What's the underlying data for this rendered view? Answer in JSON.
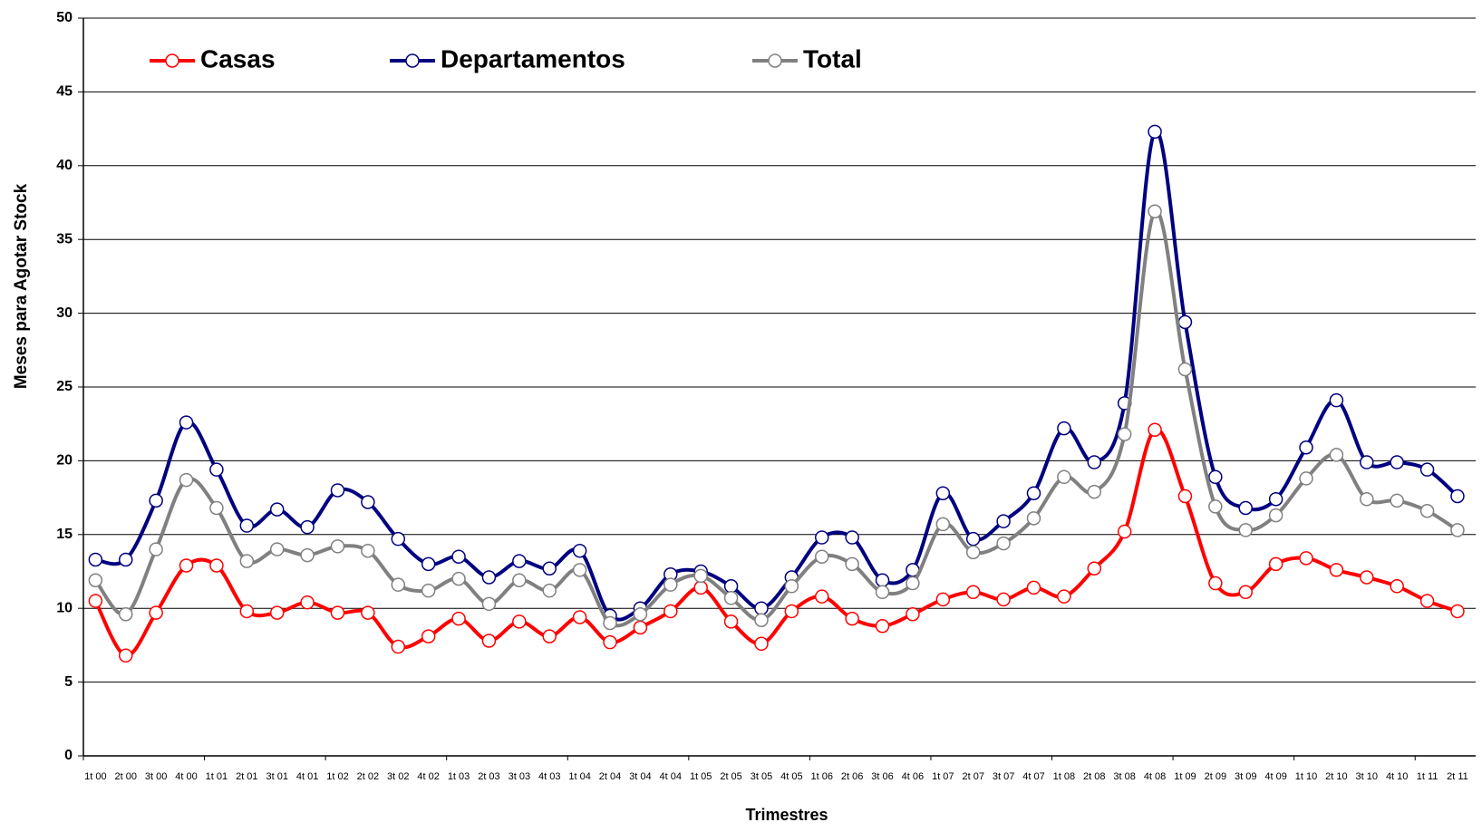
{
  "chart_data": {
    "type": "line",
    "xlabel": "Trimestres",
    "ylabel": "Meses para Agotar Stock",
    "categories": [
      "1t 00",
      "2t 00",
      "3t 00",
      "4t 00",
      "1t 01",
      "2t 01",
      "3t 01",
      "4t 01",
      "1t 02",
      "2t 02",
      "3t 02",
      "4t 02",
      "1t 03",
      "2t 03",
      "3t 03",
      "4t 03",
      "1t 04",
      "2t 04",
      "3t 04",
      "4t 04",
      "1t 05",
      "2t 05",
      "3t 05",
      "4t 05",
      "1t 06",
      "2t 06",
      "3t 06",
      "4t 06",
      "1t 07",
      "2t 07",
      "3t 07",
      "4t 07",
      "1t 08",
      "2t 08",
      "3t 08",
      "4t 08",
      "1t 09",
      "2t 09",
      "3t 09",
      "4t 09",
      "1t 10",
      "2t 10",
      "3t 10",
      "4t 10",
      "1t 11",
      "2t 11"
    ],
    "series": [
      {
        "name": "Casas",
        "color": "#ff0000",
        "values": [
          10.5,
          6.8,
          9.7,
          12.9,
          12.9,
          9.8,
          9.7,
          10.4,
          9.7,
          9.7,
          7.4,
          8.1,
          9.3,
          7.8,
          9.1,
          8.1,
          9.4,
          7.7,
          8.7,
          9.8,
          11.4,
          9.1,
          7.6,
          9.8,
          10.8,
          9.3,
          8.8,
          9.6,
          10.6,
          11.1,
          10.6,
          11.4,
          10.8,
          12.7,
          15.2,
          22.1,
          17.6,
          11.7,
          11.1,
          13.0,
          13.4,
          12.6,
          12.1,
          11.5,
          10.5,
          9.8
        ]
      },
      {
        "name": "Departamentos",
        "color": "#000080",
        "values": [
          13.3,
          13.3,
          17.3,
          22.6,
          19.4,
          15.6,
          16.7,
          15.5,
          18.0,
          17.2,
          14.7,
          13.0,
          13.5,
          12.1,
          13.2,
          12.7,
          13.9,
          9.5,
          10.0,
          12.3,
          12.5,
          11.5,
          10.0,
          12.1,
          14.8,
          14.8,
          11.9,
          12.6,
          17.8,
          14.7,
          15.9,
          17.8,
          22.2,
          19.9,
          23.9,
          42.3,
          29.4,
          18.9,
          16.8,
          17.4,
          20.9,
          24.1,
          19.9,
          19.9,
          19.4,
          17.6
        ]
      },
      {
        "name": "Total",
        "color": "#808080",
        "values": [
          11.9,
          9.6,
          14.0,
          18.7,
          16.8,
          13.2,
          14.0,
          13.6,
          14.2,
          13.9,
          11.6,
          11.2,
          12.0,
          10.3,
          11.9,
          11.2,
          12.6,
          9.0,
          9.6,
          11.6,
          12.2,
          10.7,
          9.2,
          11.5,
          13.5,
          13.0,
          11.1,
          11.7,
          15.7,
          13.8,
          14.4,
          16.1,
          18.9,
          17.9,
          21.8,
          36.9,
          26.2,
          16.9,
          15.3,
          16.3,
          18.8,
          20.4,
          17.4,
          17.3,
          16.6,
          15.3
        ]
      }
    ],
    "ylim": [
      0,
      50
    ],
    "yticks": [
      0,
      5,
      10,
      15,
      20,
      25,
      30,
      35,
      40,
      45,
      50
    ],
    "grid": true,
    "legend": "top-left"
  }
}
